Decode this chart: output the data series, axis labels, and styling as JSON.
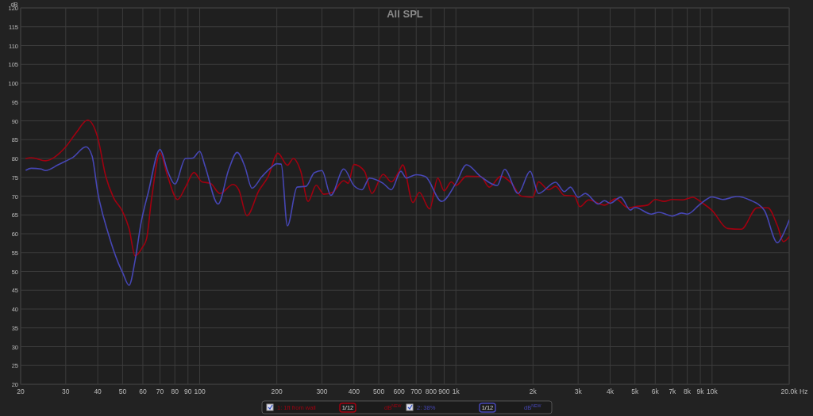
{
  "chart_data": {
    "type": "line",
    "title": "All SPL",
    "xlabel": "Hz",
    "ylabel": "dB",
    "log": "x",
    "grid": true,
    "legend": "bottom",
    "xlim": [
      20,
      20000
    ],
    "ylim": [
      20,
      120
    ],
    "xticks": [
      20,
      30,
      40,
      50,
      60,
      70,
      80,
      90,
      100,
      200,
      300,
      400,
      500,
      600,
      700,
      800,
      900,
      {
        "value": 1000,
        "label": "1k"
      },
      {
        "value": 2000,
        "label": "2k"
      },
      {
        "value": 3000,
        "label": "3k"
      },
      {
        "value": 4000,
        "label": "4k"
      },
      {
        "value": 5000,
        "label": "5k"
      },
      {
        "value": 6000,
        "label": "6k"
      },
      {
        "value": 7000,
        "label": "7k"
      },
      {
        "value": 8000,
        "label": "8k"
      },
      {
        "value": 9000,
        "label": "9k"
      },
      {
        "value": 10000,
        "label": "10k"
      },
      {
        "value": 20000,
        "label": "20.0k"
      }
    ],
    "yticks": [
      20,
      25,
      30,
      35,
      40,
      45,
      50,
      55,
      60,
      65,
      70,
      75,
      80,
      85,
      90,
      95,
      100,
      105,
      110,
      115,
      120
    ],
    "annotations": [
      "1/12",
      "dB$^{NEW}$",
      "1/12",
      "dB$^{NEW}$"
    ],
    "series": [
      {
        "name": "1: 1ft from wall",
        "color": "#a00010",
        "x": [
          21,
          22,
          25,
          30,
          33,
          36.5,
          40,
          43,
          46,
          50,
          53,
          56,
          60,
          62,
          65,
          70,
          75,
          82,
          88,
          95,
          102,
          110,
          120,
          135,
          142,
          153,
          170,
          185,
          202,
          220,
          232,
          248,
          265,
          285,
          305,
          330,
          365,
          380,
          400,
          440,
          470,
          520,
          560,
          600,
          620,
          680,
          720,
          790,
          850,
          900,
          960,
          1000,
          1100,
          1250,
          1350,
          1500,
          1650,
          1800,
          2000,
          2100,
          2300,
          2450,
          2650,
          2900,
          3050,
          3300,
          3800,
          4200,
          4700,
          5000,
          5600,
          6000,
          6500,
          7000,
          7700,
          8400,
          9200,
          10000,
          11500,
          13000,
          15000,
          16500,
          18000,
          19000,
          20000
        ],
        "values": [
          80,
          80.2,
          79.4,
          83.1,
          86.9,
          90.2,
          85.5,
          75.2,
          69.7,
          65.9,
          61.4,
          54.1,
          56.6,
          58.6,
          69.7,
          81.5,
          75.2,
          69.1,
          72.4,
          76.3,
          73.8,
          73.4,
          70.7,
          73.1,
          71.7,
          64.8,
          71.4,
          75.2,
          81.4,
          78.2,
          80,
          76.6,
          68.6,
          72.9,
          70.5,
          71,
          74.1,
          73.4,
          78.4,
          76.6,
          70.7,
          75.8,
          73.8,
          76.6,
          78.3,
          68.3,
          71,
          66.6,
          74.8,
          71.4,
          73.8,
          72.8,
          75.3,
          75.2,
          72.4,
          75.3,
          73.4,
          70,
          69.7,
          73.8,
          71.7,
          72.6,
          70.2,
          70,
          67.2,
          69,
          67.6,
          69.3,
          66.9,
          67.2,
          67.6,
          69.1,
          68.6,
          69.1,
          69,
          69.7,
          68.1,
          66.2,
          61.4,
          61.2,
          66.9,
          66.9,
          62.1,
          57.9,
          59.2
        ]
      },
      {
        "name": "2: 38%",
        "color": "#4646b4",
        "x": [
          21,
          22,
          24,
          25,
          28,
          30,
          32,
          36,
          38,
          40,
          44,
          48,
          50,
          53,
          56,
          59,
          63,
          70,
          75,
          80,
          88,
          94,
          100,
          105,
          118,
          130,
          140,
          150,
          160,
          175,
          190,
          200,
          208,
          220,
          240,
          260,
          280,
          300,
          325,
          365,
          400,
          430,
          460,
          520,
          560,
          610,
          640,
          700,
          760,
          880,
          1000,
          1100,
          1250,
          1450,
          1550,
          1750,
          1950,
          2100,
          2450,
          2650,
          2800,
          3000,
          3200,
          3600,
          3800,
          4000,
          4400,
          4800,
          5000,
          5800,
          6200,
          7000,
          7600,
          8000,
          9000,
          10000,
          11000,
          12500,
          14000,
          16000,
          18000,
          19000,
          20000
        ],
        "values": [
          76.9,
          77.4,
          77.2,
          76.8,
          78.3,
          79.3,
          80.3,
          83.1,
          80.7,
          71,
          60,
          52.4,
          49.7,
          46.3,
          53.1,
          62.8,
          71,
          82.4,
          76.6,
          73.2,
          80,
          80.1,
          81.9,
          77.9,
          67.9,
          77.2,
          81.6,
          77.9,
          72.1,
          75.2,
          77.6,
          78.6,
          78.5,
          62.1,
          72.4,
          72.6,
          76.2,
          76.8,
          70.2,
          77.2,
          72.8,
          71.7,
          74.8,
          73.4,
          71.7,
          76.6,
          74.8,
          75.7,
          75.2,
          68.6,
          73.4,
          78.3,
          75.2,
          72.8,
          77.1,
          70.7,
          76.6,
          70.7,
          73.7,
          71.2,
          72.4,
          69.7,
          70.7,
          67.9,
          68.8,
          68.1,
          69.7,
          66.3,
          67,
          65.2,
          65.7,
          64.7,
          65.5,
          65.2,
          67.9,
          69.8,
          69.1,
          69.9,
          69,
          66.2,
          57.6,
          60,
          63.6
        ]
      }
    ]
  }
}
